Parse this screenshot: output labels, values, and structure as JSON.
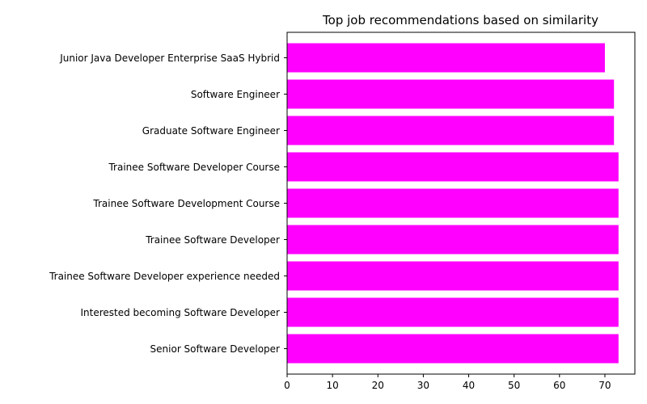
{
  "chart_data": {
    "type": "bar",
    "orientation": "horizontal",
    "title": "Top job recommendations based on similarity",
    "xlabel": "",
    "ylabel": "",
    "categories": [
      "Junior Java Developer Enterprise SaaS Hybrid",
      "Software Engineer",
      "Graduate Software Engineer",
      "Trainee Software Developer Course",
      "Trainee Software Development Course",
      "Trainee Software Developer",
      "Trainee Software Developer experience needed",
      "Interested becoming Software Developer",
      "Senior Software Developer"
    ],
    "values": [
      70,
      72,
      72,
      73,
      73,
      73,
      73,
      73,
      73
    ],
    "xlim": [
      0,
      76.6
    ],
    "xticks": [
      0,
      10,
      20,
      30,
      40,
      50,
      60,
      70
    ],
    "grid": false,
    "bar_color": "#ff00ff"
  }
}
